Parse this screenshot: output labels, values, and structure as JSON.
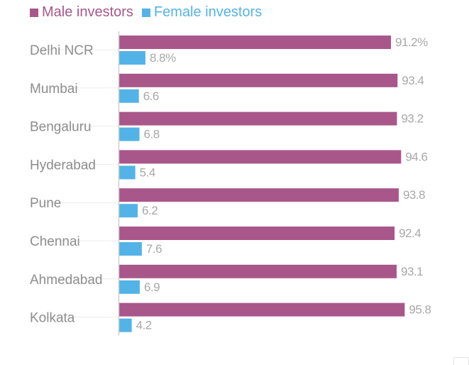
{
  "legend": {
    "male_label": "Male investors",
    "female_label": "Female investors"
  },
  "colors": {
    "male": "#A9578A",
    "female": "#54B3E6",
    "label_text": "#8e8e8e",
    "value_text": "#a8a8a8",
    "axis": "#cfcfcf",
    "guide": "#ececec"
  },
  "chart_data": {
    "type": "bar",
    "orientation": "horizontal",
    "categories": [
      "Delhi NCR",
      "Mumbai",
      "Bengaluru",
      "Hyderabad",
      "Pune",
      "Chennai",
      "Ahmedabad",
      "Kolkata"
    ],
    "series": [
      {
        "name": "Male investors",
        "values": [
          91.2,
          93.4,
          93.2,
          94.6,
          93.8,
          92.4,
          93.1,
          95.8
        ],
        "labels": [
          "91.2%",
          "93.4",
          "93.2",
          "94.6",
          "93.8",
          "92.4",
          "93.1",
          "95.8"
        ]
      },
      {
        "name": "Female investors",
        "values": [
          8.8,
          6.6,
          6.8,
          5.4,
          6.2,
          7.6,
          6.9,
          4.2
        ],
        "labels": [
          "8.8%",
          "6.6",
          "6.8",
          "5.4",
          "6.2",
          "7.6",
          "6.9",
          "4.2"
        ]
      }
    ],
    "xlim": [
      0,
      100
    ],
    "grid": false,
    "legend_position": "top-left",
    "title": "",
    "xlabel": "",
    "ylabel": ""
  }
}
